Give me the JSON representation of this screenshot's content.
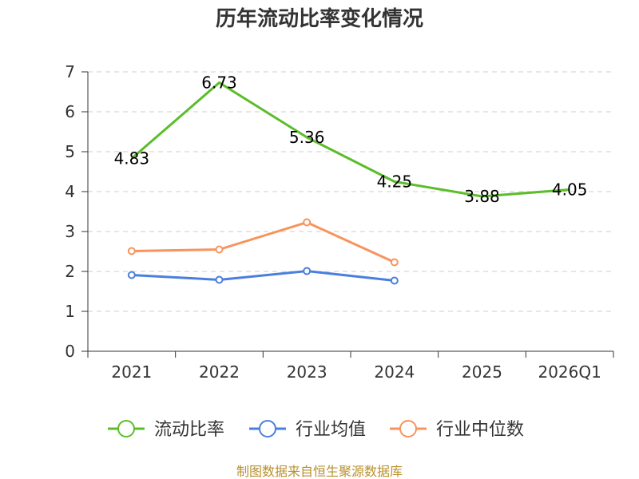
{
  "chart_data": {
    "type": "line",
    "title": "历年流动比率变化情况",
    "categories": [
      "2021",
      "2022",
      "2023",
      "2024",
      "2025",
      "2026Q1"
    ],
    "ylim": [
      0,
      7
    ],
    "yticks": [
      "0",
      "1",
      "2",
      "3",
      "4",
      "5",
      "6",
      "7"
    ],
    "grid": true,
    "legend_position": "bottom",
    "series": [
      {
        "name": "流动比率",
        "color": "#5cbd2a",
        "values": [
          4.83,
          6.73,
          5.36,
          4.25,
          3.88,
          4.05
        ],
        "labels": [
          "4.83",
          "6.73",
          "5.36",
          "4.25",
          "3.88",
          "4.05"
        ],
        "show_markers": false
      },
      {
        "name": "行业均值",
        "color": "#4a7fde",
        "values": [
          1.91,
          1.79,
          2.01,
          1.77,
          null,
          null
        ],
        "show_markers": true
      },
      {
        "name": "行业中位数",
        "color": "#f7945d",
        "values": [
          2.51,
          2.55,
          3.23,
          2.23,
          null,
          null
        ],
        "show_markers": true
      }
    ]
  },
  "footer": {
    "source": "制图数据来自恒生聚源数据库",
    "color": "#b8912e"
  }
}
